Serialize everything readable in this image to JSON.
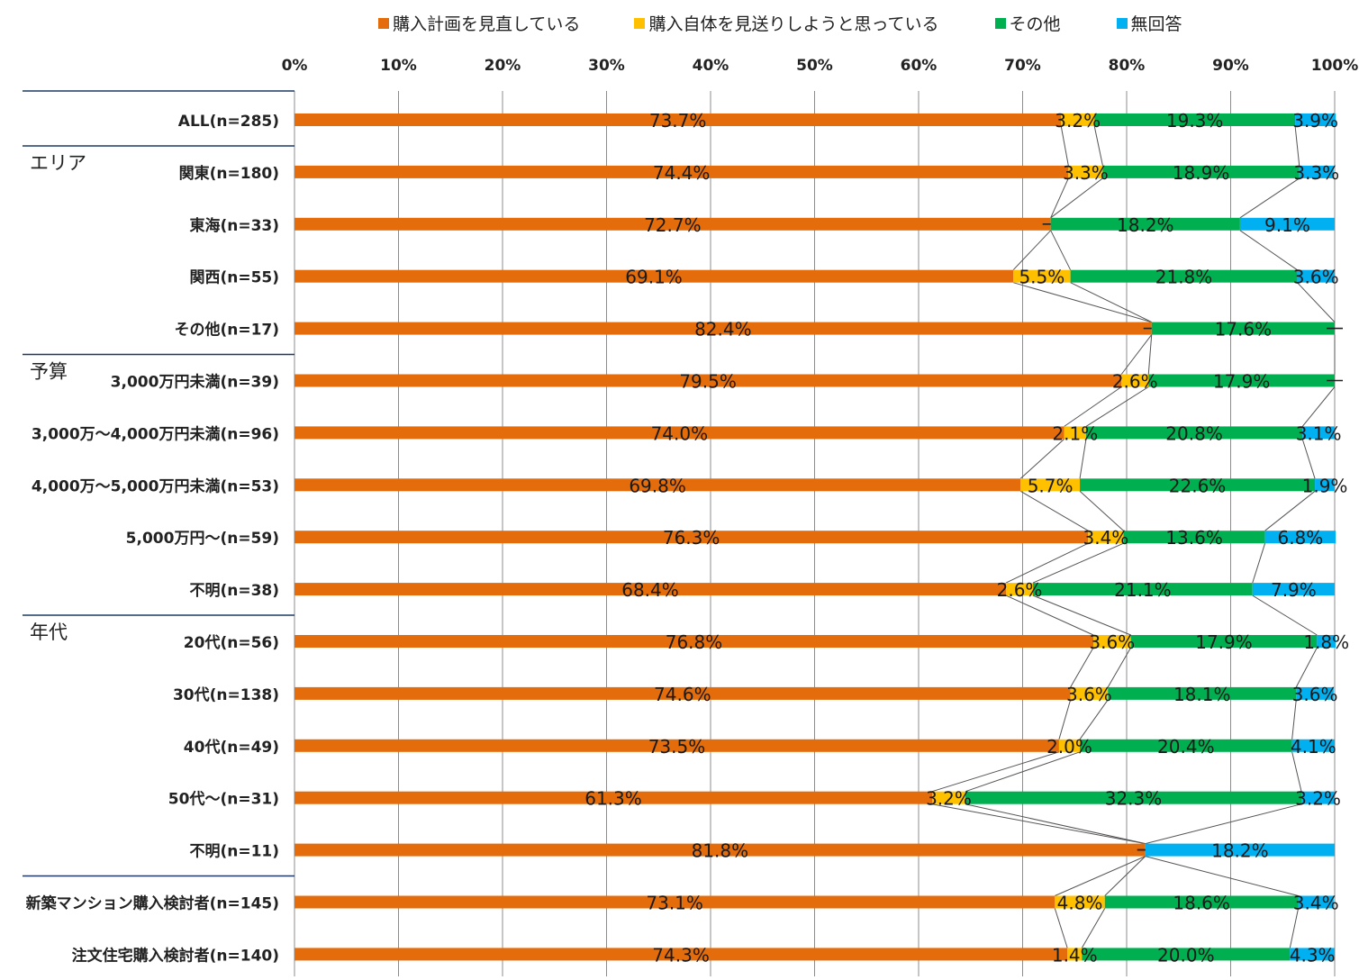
{
  "chart_data": {
    "type": "bar",
    "orientation": "horizontal",
    "stacked": true,
    "legend": {
      "position": "top",
      "entries": [
        {
          "name": "購入計画を見直している",
          "color": "#E46C0A"
        },
        {
          "name": "購入自体を見送りしようと思っている",
          "color": "#FFC000"
        },
        {
          "name": "その他",
          "color": "#00B050"
        },
        {
          "name": "無回答",
          "color": "#00B0F0"
        }
      ]
    },
    "x_ticks": [
      "0%",
      "10%",
      "20%",
      "30%",
      "40%",
      "50%",
      "60%",
      "70%",
      "80%",
      "90%",
      "100%"
    ],
    "xlim": [
      0,
      100
    ],
    "grid": true,
    "groups": [
      {
        "label": "",
        "start": 0,
        "end": 0
      },
      {
        "label": "エリア",
        "start": 1,
        "end": 4
      },
      {
        "label": "予算",
        "start": 5,
        "end": 9
      },
      {
        "label": "年代",
        "start": 10,
        "end": 14
      },
      {
        "label": "",
        "start": 15,
        "end": 16
      }
    ],
    "categories": [
      "ALL(n=285)",
      "関東(n=180)",
      "東海(n=33)",
      "関西(n=55)",
      "その他(n=17)",
      "3,000万円未満(n=39)",
      "3,000万～4,000万円未満(n=96)",
      "4,000万～5,000万円未満(n=53)",
      "5,000万円～(n=59)",
      "不明(n=38)",
      "20代(n=56)",
      "30代(n=138)",
      "40代(n=49)",
      "50代～(n=31)",
      "不明(n=11)",
      "新築マンション購入検討者(n=145)",
      "注文住宅購入検討者(n=140)"
    ],
    "series": [
      {
        "name": "購入計画を見直している",
        "color": "#E46C0A",
        "values": [
          73.7,
          74.4,
          72.7,
          69.1,
          82.4,
          79.5,
          74.0,
          69.8,
          76.3,
          68.4,
          76.8,
          74.6,
          73.5,
          61.3,
          81.8,
          73.1,
          74.3
        ],
        "labels": [
          "73.7%",
          "74.4%",
          "72.7%",
          "69.1%",
          "82.4%",
          "79.5%",
          "74.0%",
          "69.8%",
          "76.3%",
          "68.4%",
          "76.8%",
          "74.6%",
          "73.5%",
          "61.3%",
          "81.8%",
          "73.1%",
          "74.3%"
        ]
      },
      {
        "name": "購入自体を見送りしようと思っている",
        "color": "#FFC000",
        "values": [
          3.2,
          3.3,
          0,
          5.5,
          0,
          2.6,
          2.1,
          5.7,
          3.4,
          2.6,
          3.6,
          3.6,
          2.0,
          3.2,
          0,
          4.8,
          1.4
        ],
        "labels": [
          "3.2%",
          "3.3%",
          "",
          "5.5%",
          "",
          "2.6%",
          "2.1%",
          "5.7%",
          "3.4%",
          "2.6%",
          "3.6%",
          "3.6%",
          "2.0%",
          "3.2%",
          "",
          "4.8%",
          "1.4%"
        ]
      },
      {
        "name": "その他",
        "color": "#00B050",
        "values": [
          19.3,
          18.9,
          18.2,
          21.8,
          17.6,
          17.9,
          20.8,
          22.6,
          13.6,
          21.1,
          17.9,
          18.1,
          20.4,
          32.3,
          0,
          18.6,
          20.0
        ],
        "labels": [
          "19.3%",
          "18.9%",
          "18.2%",
          "21.8%",
          "17.6%",
          "17.9%",
          "20.8%",
          "22.6%",
          "13.6%",
          "21.1%",
          "17.9%",
          "18.1%",
          "20.4%",
          "32.3%",
          "",
          "18.6%",
          "20.0%"
        ]
      },
      {
        "name": "無回答",
        "color": "#00B0F0",
        "values": [
          3.9,
          3.3,
          9.1,
          3.6,
          0,
          0,
          3.1,
          1.9,
          6.8,
          7.9,
          1.8,
          3.6,
          4.1,
          3.2,
          18.2,
          3.4,
          4.3
        ],
        "labels": [
          "3.9%",
          "3.3%",
          "9.1%",
          "3.6%",
          "",
          "",
          "3.1%",
          "1.9%",
          "6.8%",
          "7.9%",
          "1.8%",
          "3.6%",
          "4.1%",
          "3.2%",
          "18.2%",
          "3.4%",
          "4.3%"
        ]
      }
    ]
  }
}
